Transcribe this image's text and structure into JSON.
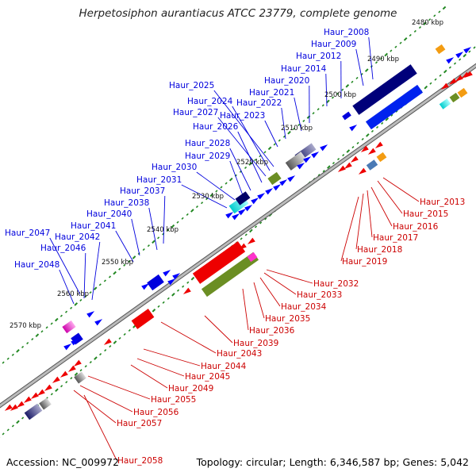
{
  "title": "Herpetosiphon aurantiacus ATCC 23779, complete genome",
  "accession": "Accession: NC_009972",
  "topology": "Topology: circular; Length: 6,346,587 bp; Genes: 5,042",
  "colors": {
    "forward_label": "#0000dd",
    "reverse_label": "#cc0000",
    "backbone": "#888888",
    "tick_green": "#228822"
  },
  "scale_labels": [
    "2480 kbp",
    "2490 kbp",
    "2500 kbp",
    "2510 kbp",
    "2520 kbp",
    "2530 kbp",
    "2540 kbp",
    "2550 kbp",
    "2560 kbp",
    "2570 kbp"
  ],
  "forward_genes": [
    "Haur_2008",
    "Haur_2009",
    "Haur_2012",
    "Haur_2014",
    "Haur_2020",
    "Haur_2021",
    "Haur_2022",
    "Haur_2023",
    "Haur_2025",
    "Haur_2024",
    "Haur_2027",
    "Haur_2026",
    "Haur_2028",
    "Haur_2029",
    "Haur_2030",
    "Haur_2031",
    "Haur_2037",
    "Haur_2038",
    "Haur_2040",
    "Haur_2041",
    "Haur_2042",
    "Haur_2047",
    "Haur_2046",
    "Haur_2048"
  ],
  "reverse_genes": [
    "Haur_2013",
    "Haur_2015",
    "Haur_2016",
    "Haur_2017",
    "Haur_2018",
    "Haur_2019",
    "Haur_2032",
    "Haur_2033",
    "Haur_2034",
    "Haur_2035",
    "Haur_2036",
    "Haur_2039",
    "Haur_2043",
    "Haur_2044",
    "Haur_2045",
    "Haur_2049",
    "Haur_2055",
    "Haur_2056",
    "Haur_2057",
    "Haur_2058"
  ]
}
